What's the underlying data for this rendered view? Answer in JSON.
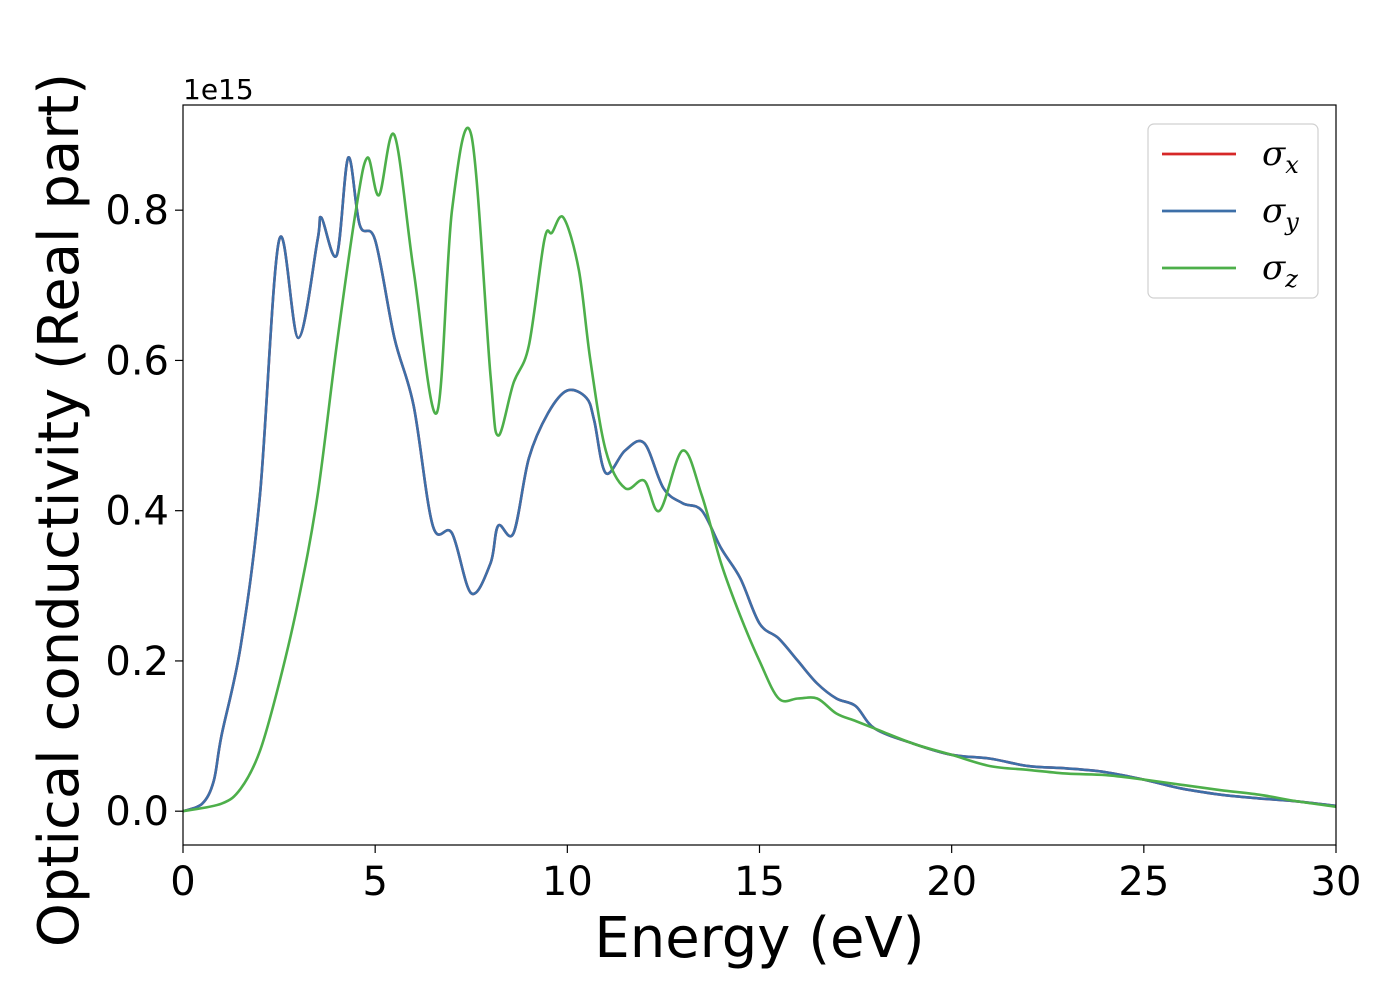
{
  "chart_data": {
    "type": "line",
    "xlabel": "Energy (eV)",
    "ylabel": "Optical conductivity (Real part)",
    "y_offset_label": "1e15",
    "xlim": [
      0,
      30
    ],
    "ylim": [
      -0.045,
      0.94
    ],
    "xticks": [
      0,
      5,
      10,
      15,
      20,
      25,
      30
    ],
    "yticks": [
      0.0,
      0.2,
      0.4,
      0.6,
      0.8
    ],
    "ytick_labels": [
      "0.0",
      "0.2",
      "0.4",
      "0.6",
      "0.8"
    ],
    "grid": false,
    "legend_position": "top-right",
    "series": [
      {
        "name": "σx",
        "symbol": "σ",
        "subscript": "x",
        "color": "#d62728",
        "x": [
          0,
          0.5,
          0.8,
          1.0,
          1.5,
          2.0,
          2.5,
          3.0,
          3.5,
          3.6,
          4.0,
          4.3,
          4.6,
          5.0,
          5.5,
          6.0,
          6.5,
          7.0,
          7.5,
          8.0,
          8.2,
          8.6,
          9.0,
          9.5,
          10.0,
          10.5,
          10.7,
          11.0,
          11.5,
          12.0,
          12.5,
          13.0,
          13.5,
          14.0,
          14.5,
          15.0,
          15.5,
          16.0,
          16.5,
          17.0,
          17.5,
          18.0,
          19.0,
          20.0,
          21.0,
          22.0,
          23.0,
          24.0,
          25.0,
          26.0,
          27.0,
          28.0,
          29.0,
          30.0
        ],
        "y": [
          0.0,
          0.01,
          0.04,
          0.1,
          0.22,
          0.42,
          0.76,
          0.63,
          0.76,
          0.79,
          0.74,
          0.87,
          0.78,
          0.76,
          0.63,
          0.54,
          0.38,
          0.37,
          0.29,
          0.33,
          0.38,
          0.37,
          0.47,
          0.53,
          0.56,
          0.55,
          0.52,
          0.45,
          0.48,
          0.49,
          0.43,
          0.41,
          0.4,
          0.35,
          0.31,
          0.25,
          0.23,
          0.2,
          0.17,
          0.15,
          0.14,
          0.11,
          0.09,
          0.075,
          0.07,
          0.06,
          0.057,
          0.052,
          0.042,
          0.03,
          0.022,
          0.017,
          0.013,
          0.007
        ]
      },
      {
        "name": "σy",
        "symbol": "σ",
        "subscript": "y",
        "color": "#3d6fa8",
        "x": [
          0,
          0.5,
          0.8,
          1.0,
          1.5,
          2.0,
          2.5,
          3.0,
          3.5,
          3.6,
          4.0,
          4.3,
          4.6,
          5.0,
          5.5,
          6.0,
          6.5,
          7.0,
          7.5,
          8.0,
          8.2,
          8.6,
          9.0,
          9.5,
          10.0,
          10.5,
          10.7,
          11.0,
          11.5,
          12.0,
          12.5,
          13.0,
          13.5,
          14.0,
          14.5,
          15.0,
          15.5,
          16.0,
          16.5,
          17.0,
          17.5,
          18.0,
          19.0,
          20.0,
          21.0,
          22.0,
          23.0,
          24.0,
          25.0,
          26.0,
          27.0,
          28.0,
          29.0,
          30.0
        ],
        "y": [
          0.0,
          0.01,
          0.04,
          0.1,
          0.22,
          0.42,
          0.76,
          0.63,
          0.76,
          0.79,
          0.74,
          0.87,
          0.78,
          0.76,
          0.63,
          0.54,
          0.38,
          0.37,
          0.29,
          0.33,
          0.38,
          0.37,
          0.47,
          0.53,
          0.56,
          0.55,
          0.52,
          0.45,
          0.48,
          0.49,
          0.43,
          0.41,
          0.4,
          0.35,
          0.31,
          0.25,
          0.23,
          0.2,
          0.17,
          0.15,
          0.14,
          0.11,
          0.09,
          0.075,
          0.07,
          0.06,
          0.057,
          0.052,
          0.042,
          0.03,
          0.022,
          0.017,
          0.013,
          0.007
        ]
      },
      {
        "name": "σz",
        "symbol": "σ",
        "subscript": "z",
        "color": "#4daf4a",
        "x": [
          0,
          1.0,
          1.5,
          2.0,
          2.5,
          3.0,
          3.5,
          4.0,
          4.5,
          4.8,
          5.1,
          5.5,
          6.0,
          6.6,
          7.0,
          7.5,
          8.0,
          8.2,
          8.6,
          9.0,
          9.4,
          9.6,
          9.9,
          10.3,
          10.6,
          11.0,
          11.5,
          12.0,
          12.4,
          13.0,
          13.5,
          14.0,
          14.5,
          15.0,
          15.5,
          16.0,
          16.5,
          17.0,
          17.5,
          18.0,
          19.0,
          20.0,
          21.0,
          22.0,
          23.0,
          24.0,
          25.0,
          26.0,
          27.0,
          28.0,
          29.0,
          30.0
        ],
        "y": [
          0.0,
          0.01,
          0.03,
          0.08,
          0.17,
          0.28,
          0.42,
          0.62,
          0.8,
          0.87,
          0.82,
          0.9,
          0.72,
          0.53,
          0.8,
          0.9,
          0.58,
          0.5,
          0.57,
          0.62,
          0.76,
          0.77,
          0.79,
          0.72,
          0.6,
          0.48,
          0.43,
          0.44,
          0.4,
          0.48,
          0.42,
          0.33,
          0.26,
          0.2,
          0.15,
          0.15,
          0.15,
          0.13,
          0.12,
          0.11,
          0.09,
          0.075,
          0.06,
          0.055,
          0.05,
          0.048,
          0.042,
          0.035,
          0.028,
          0.022,
          0.013,
          0.006
        ]
      }
    ]
  }
}
